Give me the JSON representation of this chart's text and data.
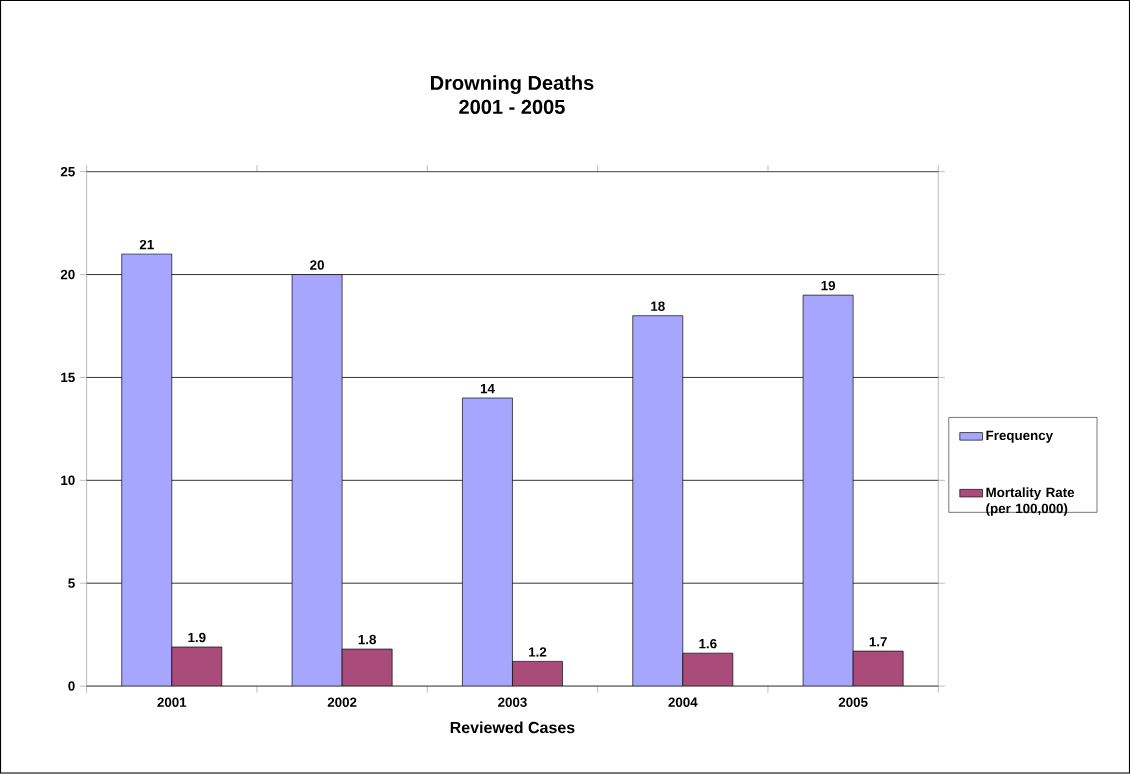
{
  "chart_data": {
    "type": "bar",
    "title": "Drowning Deaths",
    "subtitle": "2001 - 2005",
    "xlabel": "Reviewed Cases",
    "categories": [
      "2001",
      "2002",
      "2003",
      "2004",
      "2005"
    ],
    "series": [
      {
        "name": "Frequency",
        "color": "#a6a6ff",
        "values": [
          21,
          20,
          14,
          18,
          19
        ]
      },
      {
        "name": "Mortality Rate (per 100,000)",
        "color": "#a94c7a",
        "values": [
          1.9,
          1.8,
          1.2,
          1.6,
          1.7
        ]
      }
    ],
    "ylim": [
      0,
      25
    ],
    "yticks": [
      0,
      5,
      10,
      15,
      20,
      25
    ],
    "grid": "y",
    "legend": "right",
    "data_labels": true
  }
}
